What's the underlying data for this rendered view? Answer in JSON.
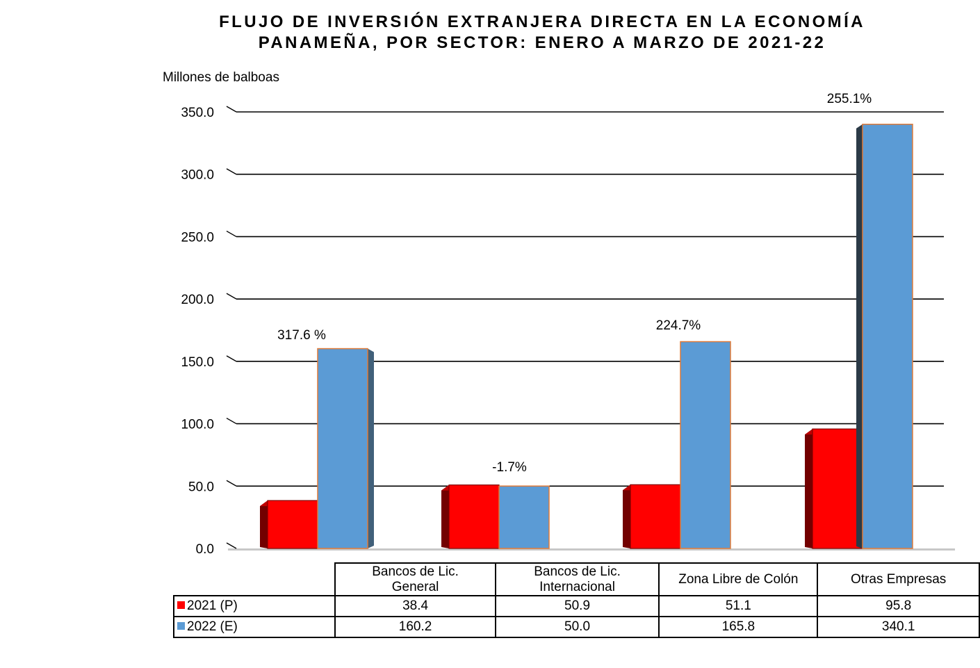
{
  "title_line1": "FLUJO DE INVERSIÓN EXTRANJERA DIRECTA EN LA ECONOMÍA",
  "title_line2": "PANAMEÑA, POR SECTOR: ENERO A MARZO DE 2021-22",
  "colors": {
    "series_2021": "#ff0000",
    "series_2022": "#5b9bd5",
    "gridline": "#000000",
    "floor": "#c8c8c8"
  },
  "chart_data": {
    "type": "bar",
    "title": "FLUJO DE INVERSIÓN EXTRANJERA DIRECTA EN LA ECONOMÍA PANAMEÑA, POR SECTOR: ENERO A MARZO DE 2021-22",
    "ylabel": "Millones de balboas",
    "xlabel": "",
    "ylim": [
      0,
      350
    ],
    "yticks": [
      "0.0",
      "50.0",
      "100.0",
      "150.0",
      "200.0",
      "250.0",
      "300.0",
      "350.0"
    ],
    "ytick_values": [
      0,
      50,
      100,
      150,
      200,
      250,
      300,
      350
    ],
    "grid": true,
    "categories": [
      [
        "Bancos de Lic.",
        "General"
      ],
      [
        "Bancos de Lic.",
        "Internacional"
      ],
      [
        "Zona Libre de Colón"
      ],
      [
        "Otras Empresas"
      ]
    ],
    "series": [
      {
        "name": "2021 (P)",
        "values": [
          38.4,
          50.9,
          51.1,
          95.8
        ],
        "labels": [
          "38.4",
          "50.9",
          "51.1",
          "95.8"
        ]
      },
      {
        "name": "2022 (E)",
        "values": [
          160.2,
          50.0,
          165.8,
          340.1
        ],
        "labels": [
          "160.2",
          "50.0",
          "165.8",
          "340.1"
        ]
      }
    ],
    "annotations": [
      "317.6 %",
      "-1.7%",
      "224.7%",
      "255.1%"
    ]
  }
}
